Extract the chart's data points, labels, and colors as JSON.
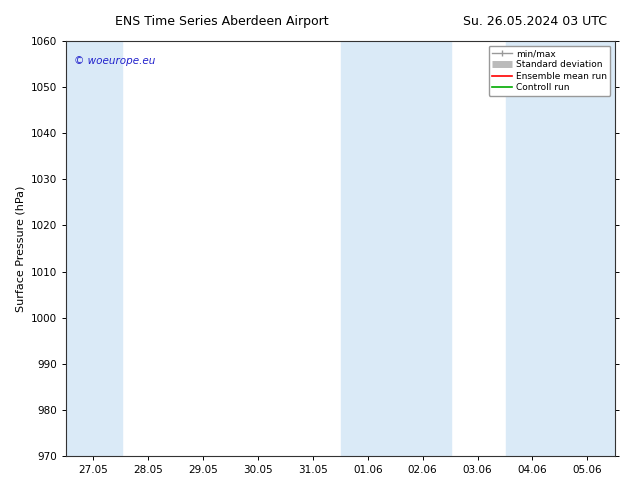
{
  "title_left": "ENS Time Series Aberdeen Airport",
  "title_right": "Su. 26.05.2024 03 UTC",
  "ylabel": "Surface Pressure (hPa)",
  "ylim": [
    970,
    1060
  ],
  "yticks": [
    970,
    980,
    990,
    1000,
    1010,
    1020,
    1030,
    1040,
    1050,
    1060
  ],
  "xtick_labels": [
    "27.05",
    "28.05",
    "29.05",
    "30.05",
    "31.05",
    "01.06",
    "02.06",
    "03.06",
    "04.06",
    "05.06"
  ],
  "shaded_color": "#daeaf7",
  "background_color": "#ffffff",
  "watermark_text": "© woeurope.eu",
  "watermark_color": "#2222cc",
  "legend_entries": [
    "min/max",
    "Standard deviation",
    "Ensemble mean run",
    "Controll run"
  ],
  "legend_colors_line": [
    "#999999",
    "#bbbbbb",
    "#ff0000",
    "#00aa00"
  ],
  "title_fontsize": 9,
  "label_fontsize": 8,
  "tick_fontsize": 7.5
}
